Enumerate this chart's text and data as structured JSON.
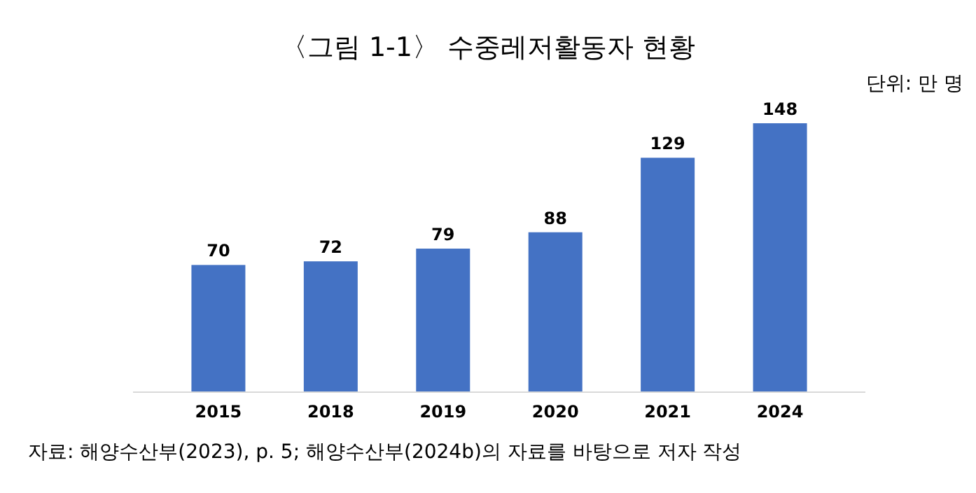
{
  "chart_data": {
    "type": "bar",
    "title": "〈그림 1-1〉 수중레저활동자 현황",
    "subtitle": "단위: 만 명",
    "categories": [
      "2015",
      "2018",
      "2019",
      "2020",
      "2021",
      "2024"
    ],
    "values": [
      70,
      72,
      79,
      88,
      129,
      148
    ],
    "color": "#4472c4",
    "data_labels": true,
    "annotations": [
      "자료: 해양수산부(2023), p. 5; 해양수산부(2024b)의 자료를 바탕으로 저자 작성"
    ]
  }
}
